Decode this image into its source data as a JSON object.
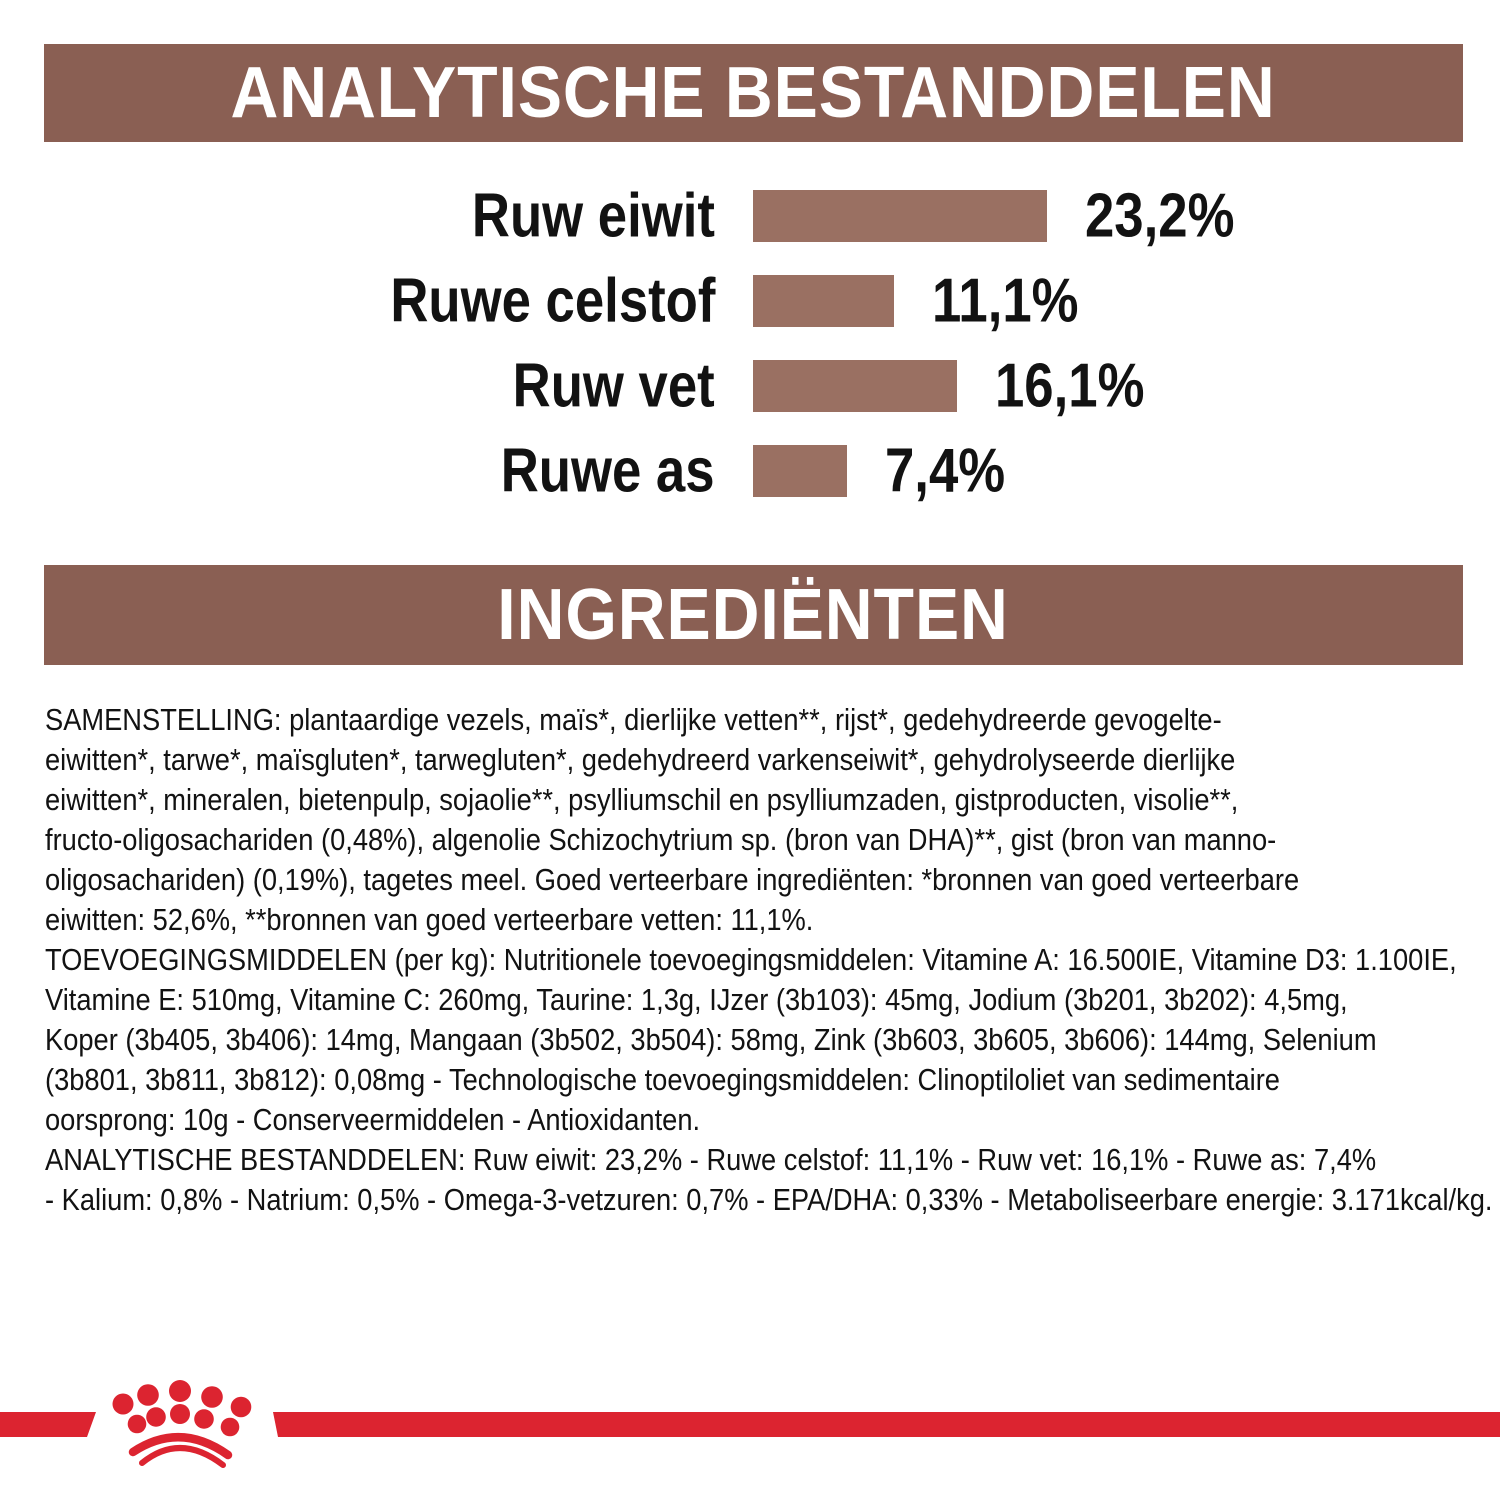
{
  "theme": {
    "brown_header": "#8a5f53",
    "brown_bar": "#9a7062",
    "brand_red": "#dc2430",
    "text_color": "#121212",
    "header_text_color": "#ffffff"
  },
  "sections": {
    "analytical": {
      "title": "ANALYTISCHE BESTANDDELEN"
    },
    "ingredients": {
      "title": "INGREDIËNTEN"
    }
  },
  "chart_data": {
    "type": "bar",
    "orientation": "horizontal",
    "title": "ANALYTISCHE BESTANDDELEN",
    "categories": [
      "Ruw eiwit",
      "Ruwe celstof",
      "Ruw vet",
      "Ruwe as"
    ],
    "values": [
      23.2,
      11.1,
      16.1,
      7.4
    ],
    "display_values": [
      "23,2%",
      "11,1%",
      "16,1%",
      "7,4%"
    ],
    "unit": "%",
    "xlim": [
      0,
      30
    ],
    "grid": false,
    "bar_color": "#9a7062"
  },
  "ingredients_text": {
    "lines": [
      "SAMENSTELLING: plantaardige vezels, maïs*, dierlijke vetten**, rijst*, gedehydreerde gevogelte-",
      "eiwitten*, tarwe*, maïsgluten*, tarwegluten*, gedehydreerd varkenseiwit*, gehydrolyseerde dierlijke",
      "eiwitten*, mineralen, bietenpulp, sojaolie**, psylliumschil en psylliumzaden, gistproducten, visolie**,",
      "fructo-oligosachariden (0,48%), algenolie Schizochytrium sp. (bron van DHA)**, gist (bron van manno-",
      "oligosachariden) (0,19%), tagetes meel. Goed verteerbare ingrediënten: *bronnen van goed verteerbare",
      "eiwitten: 52,6%, **bronnen van goed verteerbare vetten: 11,1%.",
      "TOEVOEGINGSMIDDELEN (per kg): Nutritionele toevoegingsmiddelen: Vitamine A: 16.500IE, Vitamine D3: 1.100IE,",
      "Vitamine E: 510mg, Vitamine C: 260mg, Taurine: 1,3g, IJzer (3b103): 45mg, Jodium (3b201, 3b202): 4,5mg,",
      "Koper (3b405, 3b406): 14mg, Mangaan (3b502, 3b504): 58mg, Zink (3b603, 3b605, 3b606): 144mg, Selenium",
      "(3b801, 3b811, 3b812): 0,08mg - Technologische toevoegingsmiddelen: Clinoptiloliet van sedimentaire",
      "oorsprong: 10g - Conserveermiddelen - Antioxidanten.",
      "ANALYTISCHE BESTANDDELEN: Ruw eiwit: 23,2% - Ruwe celstof: 11,1% - Ruw vet: 16,1% - Ruwe as: 7,4%",
      "- Kalium: 0,8% - Natrium: 0,5% - Omega-3-vetzuren: 0,7% - EPA/DHA: 0,33% - Metaboliseerbare energie: 3.171kcal/kg."
    ]
  },
  "footer": {
    "logo_name": "royal-canin-crown"
  }
}
